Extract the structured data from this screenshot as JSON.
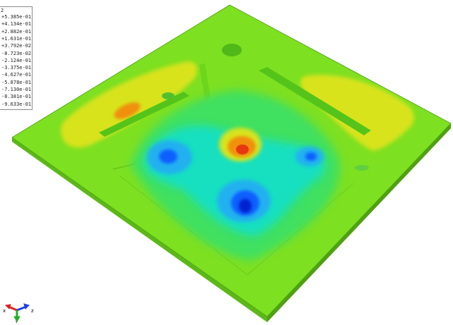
{
  "legend": {
    "title": "2",
    "entries": [
      {
        "label": "+5.385e-01",
        "color": "#ff0000"
      },
      {
        "label": "+4.134e-01",
        "color": "#ff5e00"
      },
      {
        "label": "+2.882e-01",
        "color": "#ffb900"
      },
      {
        "label": "+1.631e-01",
        "color": "#e6f000"
      },
      {
        "label": "+3.792e-02",
        "color": "#8ff000"
      },
      {
        "label": "-8.723e-02",
        "color": "#35f000"
      },
      {
        "label": "-2.124e-01",
        "color": "#00f03c"
      },
      {
        "label": "-3.375e-01",
        "color": "#00f09a"
      },
      {
        "label": "-4.627e-01",
        "color": "#00e6e6"
      },
      {
        "label": "-5.878e-01",
        "color": "#00a0ff"
      },
      {
        "label": "-7.130e-01",
        "color": "#0056ff"
      },
      {
        "label": "-8.381e-01",
        "color": "#000cff"
      },
      {
        "label": "-9.633e-01",
        "color": "#0000c8"
      }
    ]
  },
  "triad": {
    "x_label": "x",
    "z_label": "z",
    "y_label": "y",
    "x_color": "#e02020",
    "y_color": "#20b020",
    "z_color": "#2040e0"
  },
  "colors": {
    "plate_base": "#7de021",
    "plate_edge": "#4fa012",
    "plate_side": "#5cb818",
    "yellow": "#d8e31a",
    "orange": "#f09010",
    "red": "#e83810",
    "cyan": "#18e0c0",
    "lightblue": "#20b0f0",
    "blue": "#1060ff",
    "deepblue": "#0020d0"
  }
}
